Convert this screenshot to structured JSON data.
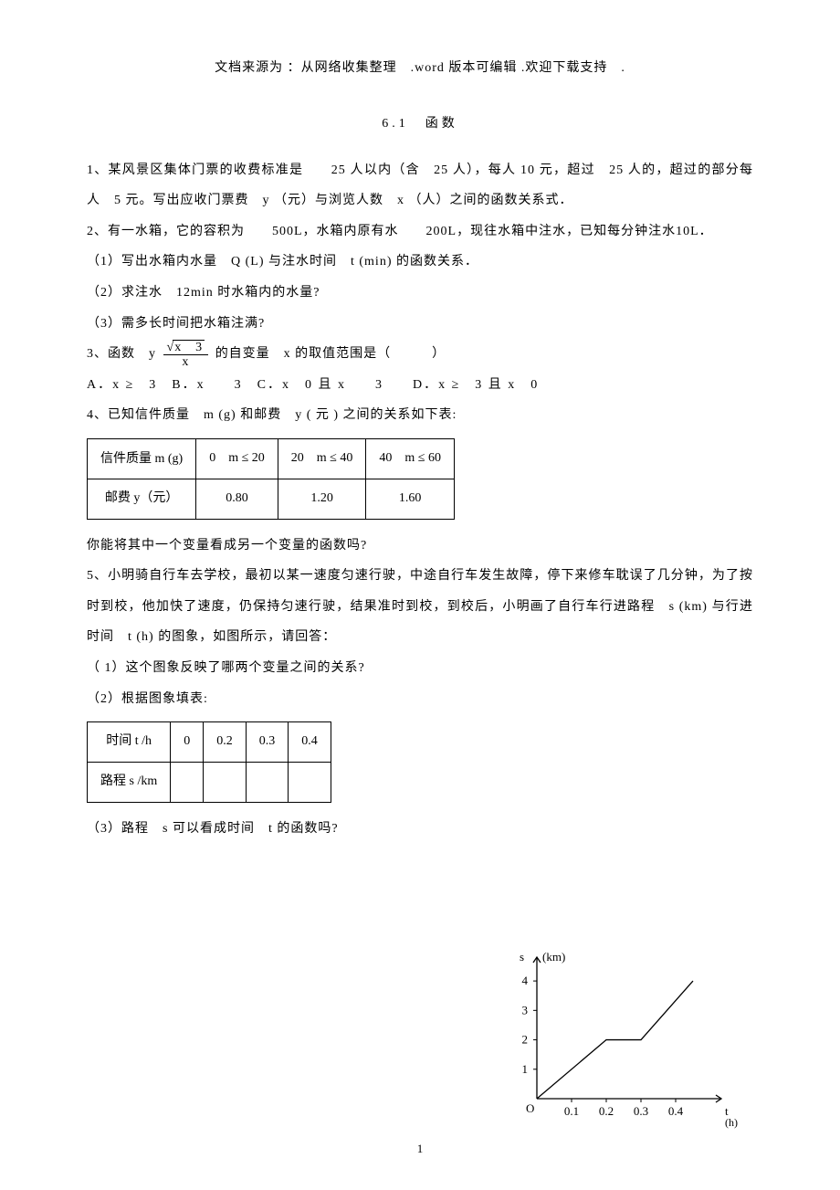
{
  "header_note": "文档来源为 ：从网络收集整理　.word 版本可编辑 .欢迎下载支持　.",
  "section_title": "6.1　函数",
  "q1": "1、某风景区集体门票的收费标准是　　25 人以内（含　25 人），每人 10 元，超过　25 人的，超过的部分每人　5 元。写出应收门票费　y （元）与浏览人数　x （人）之间的函数关系式．",
  "q2_intro": "2、有一水箱，它的容积为　　500L，水箱内原有水　　200L，现往水箱中注水，已知每分钟注水10L．",
  "q2_1": "（1）写出水箱内水量　Q (L) 与注水时间　t (min) 的函数关系．",
  "q2_2": "（2）求注水　12min 时水箱内的水量?",
  "q2_3": "（3）需多长时间把水箱注满?",
  "q3_pre": "3、函数　y",
  "q3_num_inner": "x　3",
  "q3_den": "x",
  "q3_post": "的自变量　x 的取值范围是（　　　）",
  "q3_options": "A．x ≥　3　B．x　　3　C．x　0 且 x　　3　　D．x ≥　3 且 x　0",
  "q4_intro": "4、已知信件质量　m (g) 和邮费　y ( 元 ) 之间的关系如下表:",
  "table4": {
    "row1_label": "信件质量 m (g)",
    "cols": [
      "0　m ≤ 20",
      "20　m ≤ 40",
      "40　m ≤ 60"
    ],
    "row2_label": "邮费 y（元）",
    "vals": [
      "0.80",
      "1.20",
      "1.60"
    ]
  },
  "q4_tail": "你能将其中一个变量看成另一个变量的函数吗?",
  "q5_intro": "5、小明骑自行车去学校，最初以某一速度匀速行驶，中途自行车发生故障，停下来修车耽误了几分钟，为了按时到校，他加快了速度，仍保持匀速行驶，结果准时到校，到校后，小明画了自行车行进路程　s (km) 与行进时间　t (h) 的图象，如图所示，请回答：",
  "q5_1": "（ 1）这个图象反映了哪两个变量之间的关系?",
  "q5_2": "（2）根据图象填表:",
  "table5": {
    "row1_label": "时间 t /h",
    "cols": [
      "0",
      "0.2",
      "0.3",
      "0.4"
    ],
    "row2_label": "路程 s /km",
    "vals": [
      "",
      "",
      "",
      ""
    ]
  },
  "q5_3": "（3）路程　s 可以看成时间　t 的函数吗?",
  "page_number": "1",
  "chart": {
    "y_label": "s",
    "y_unit": "(km)",
    "x_label": "t",
    "x_unit": "(h)",
    "y_ticks": [
      "1",
      "2",
      "3",
      "4"
    ],
    "x_ticks": [
      "0.1",
      "0.2",
      "0.3",
      "0.4"
    ],
    "origin": "O",
    "points": [
      [
        0,
        0
      ],
      [
        0.2,
        2
      ],
      [
        0.3,
        2
      ],
      [
        0.45,
        4
      ]
    ],
    "xlim": [
      0,
      0.5
    ],
    "ylim": [
      0,
      4.5
    ],
    "stroke_color": "#000000",
    "stroke_width": 1.3,
    "axis_color": "#000000",
    "font_size": 13
  }
}
